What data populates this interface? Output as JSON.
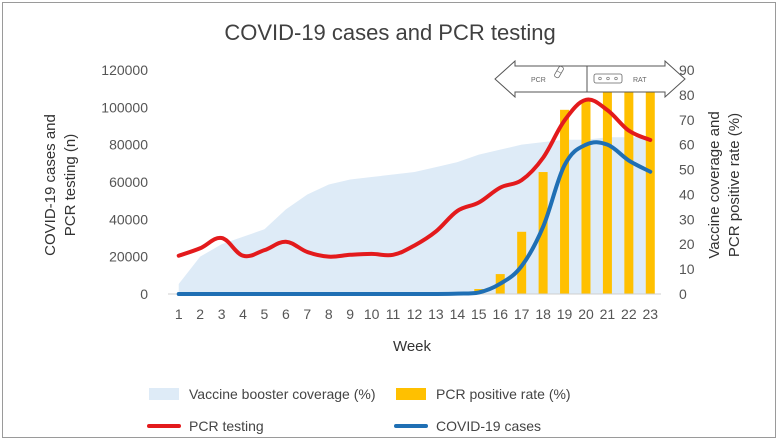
{
  "chart_data": {
    "type": "combo",
    "title": "COVID-19 cases and PCR testing",
    "xlabel": "Week",
    "ylabel_left_line1": "COVID-19 cases and",
    "ylabel_left_line2": "PCR testing (n)",
    "ylabel_right_line1": "Vaccine coverage and",
    "ylabel_right_line2": "PCR positive rate (%)",
    "left_ylim": [
      0,
      120000
    ],
    "right_ylim": [
      0,
      90
    ],
    "left_ticks": [
      "0",
      "20000",
      "40000",
      "60000",
      "80000",
      "100000",
      "120000"
    ],
    "right_ticks": [
      "0",
      "10",
      "20",
      "30",
      "40",
      "50",
      "60",
      "70",
      "80",
      "90"
    ],
    "categories": [
      "1",
      "2",
      "3",
      "4",
      "5",
      "6",
      "7",
      "8",
      "9",
      "10",
      "11",
      "12",
      "13",
      "14",
      "15",
      "16",
      "17",
      "18",
      "19",
      "20",
      "21",
      "22",
      "23"
    ],
    "series": [
      {
        "name": "Vaccine booster coverage (%)",
        "kind": "area",
        "axis": "right",
        "color": "#deebf7",
        "values": [
          4,
          15,
          20,
          23,
          26,
          34,
          40,
          44,
          46,
          47,
          48,
          49,
          51,
          53,
          56,
          58,
          60,
          61,
          62,
          62,
          63,
          63,
          63
        ]
      },
      {
        "name": "PCR positive rate (%)",
        "kind": "bar",
        "axis": "right",
        "color": "#ffc000",
        "values": [
          0,
          0,
          0,
          0,
          0,
          0,
          0,
          0,
          0,
          0,
          0,
          0,
          0,
          0,
          2,
          8,
          25,
          49,
          74,
          78,
          82,
          83,
          81
        ]
      },
      {
        "name": "PCR testing",
        "kind": "line",
        "axis": "left",
        "color": "#e31a1c",
        "values": [
          20500,
          24500,
          30000,
          20500,
          23500,
          28000,
          22500,
          20000,
          21000,
          21500,
          21000,
          26000,
          33500,
          44500,
          49000,
          57000,
          61000,
          73000,
          93000,
          104000,
          98500,
          87500,
          82500
        ]
      },
      {
        "name": "COVID-19 cases",
        "kind": "line",
        "axis": "left",
        "color": "#1f6fb4",
        "values": [
          0,
          0,
          0,
          0,
          0,
          0,
          0,
          0,
          0,
          0,
          0,
          0,
          0,
          200,
          800,
          5500,
          15000,
          36000,
          69000,
          80000,
          80000,
          71500,
          65500
        ]
      }
    ],
    "inset": {
      "left_label": "PCR",
      "right_label": "RAT"
    }
  },
  "legend": {
    "vaccine": "Vaccine booster coverage (%)",
    "positive": "PCR positive rate (%)",
    "pcr": "PCR testing",
    "cases": "COVID-19 cases"
  }
}
